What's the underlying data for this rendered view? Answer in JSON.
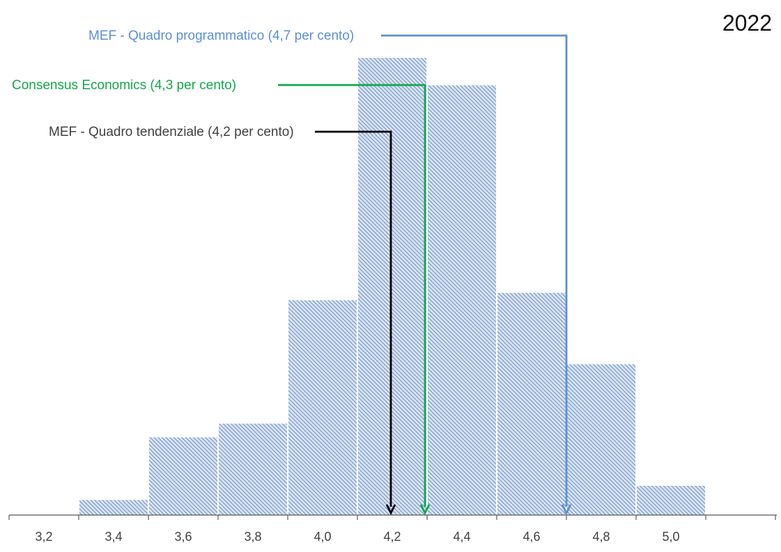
{
  "chart_data": {
    "type": "bar",
    "title": "2022",
    "xlabel": "",
    "ylabel": "",
    "tick_labels": [
      "3,2",
      "3,4",
      "3,6",
      "3,8",
      "4,0",
      "4,2",
      "4,4",
      "4,6",
      "4,8",
      "5,0"
    ],
    "x_ticks": [
      3.2,
      3.4,
      3.6,
      3.8,
      4.0,
      4.2,
      4.4,
      4.6,
      4.8,
      5.0
    ],
    "xlim": [
      3.1,
      5.55
    ],
    "bins": [
      {
        "from": 3.3,
        "to": 3.5,
        "value": 0.033
      },
      {
        "from": 3.5,
        "to": 3.7,
        "value": 0.17
      },
      {
        "from": 3.7,
        "to": 3.9,
        "value": 0.2
      },
      {
        "from": 3.9,
        "to": 4.1,
        "value": 0.47
      },
      {
        "from": 4.1,
        "to": 4.3,
        "value": 1.0
      },
      {
        "from": 4.3,
        "to": 4.5,
        "value": 0.94
      },
      {
        "from": 4.5,
        "to": 4.7,
        "value": 0.486
      },
      {
        "from": 4.7,
        "to": 4.9,
        "value": 0.33
      },
      {
        "from": 4.9,
        "to": 5.1,
        "value": 0.064
      }
    ],
    "ylim": [
      0,
      1.0
    ],
    "grid": false,
    "bar_color": "#6f93c9",
    "annotations": [
      {
        "label": "MEF - Quadro programmatico  (4,7 per cento)",
        "x": 4.7,
        "color": "#5b8fd4"
      },
      {
        "label": "Consensus Economics (4,3 per cento)",
        "x": 4.3,
        "color": "#10a84b"
      },
      {
        "label": "MEF - Quadro tendenziale (4,2 per cento)",
        "x": 4.2,
        "color": "#000000",
        "text_color": "#404040"
      }
    ]
  }
}
